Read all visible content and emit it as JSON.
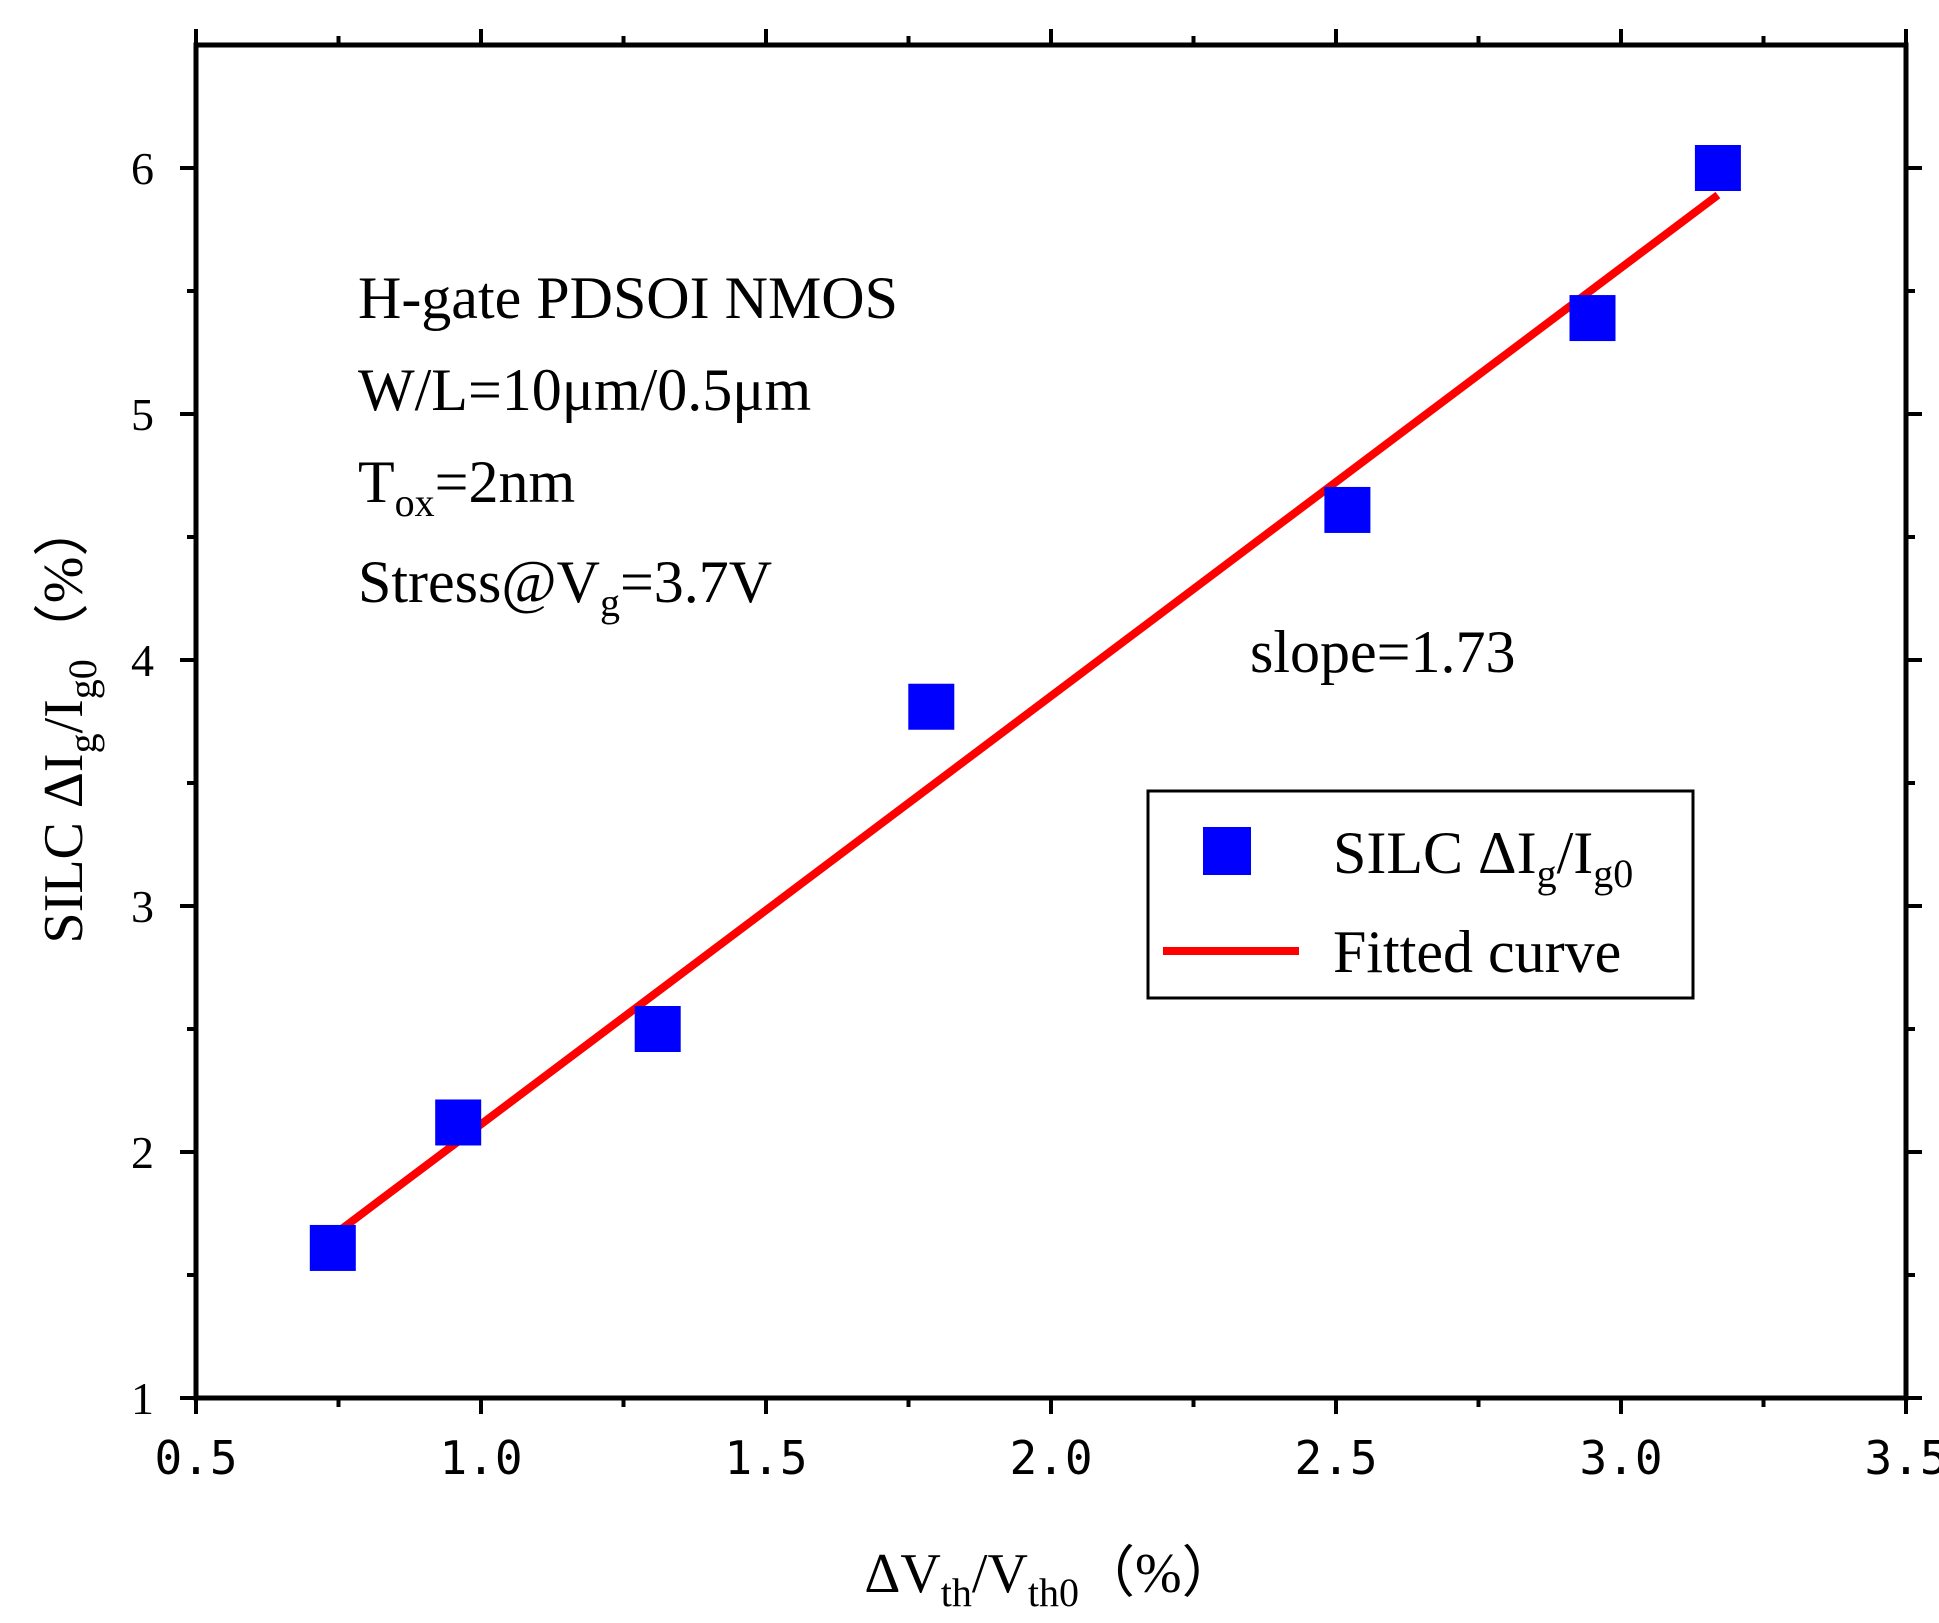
{
  "chart_data": {
    "type": "scatter",
    "xlabel": {
      "main": "ΔV",
      "sub1": "th",
      "mid": "/V",
      "sub2": "th0",
      "unit": "（%）"
    },
    "ylabel": {
      "main": "SILC ΔI",
      "sub1": "g",
      "mid": "/I",
      "sub2": "g0",
      "unit": "（%）"
    },
    "xlim": [
      0.5,
      3.5
    ],
    "ylim": [
      1,
      6.5
    ],
    "x_ticks": [
      0.5,
      1.0,
      1.5,
      2.0,
      2.5,
      3.0,
      3.5
    ],
    "x_tick_labels": [
      "0.5",
      "1.0",
      "1.5",
      "2.0",
      "2.5",
      "3.0",
      "3.5"
    ],
    "y_ticks": [
      1,
      2,
      3,
      4,
      5,
      6
    ],
    "y_tick_labels": [
      "1",
      "2",
      "3",
      "4",
      "5",
      "6"
    ],
    "grid": false,
    "series": [
      {
        "name": "SILC ΔIg/Ig0",
        "kind": "scatter",
        "marker": "square",
        "color": "#0000ff",
        "x": [
          0.74,
          0.96,
          1.31,
          1.79,
          2.52,
          2.95,
          3.17
        ],
        "y": [
          1.61,
          2.12,
          2.5,
          3.81,
          4.61,
          5.39,
          6.0
        ]
      },
      {
        "name": "Fitted curve",
        "kind": "line",
        "color": "#ff0000",
        "x": [
          0.74,
          3.17
        ],
        "y": [
          1.66,
          5.89
        ]
      }
    ],
    "annotations": {
      "line1": "H-gate PDSOI NMOS",
      "line2": "W/L=10μm/0.5μm",
      "line3_main": "T",
      "line3_sub": "ox",
      "line3_rest": "=2nm",
      "line4_main": "Stress@V",
      "line4_sub": "g",
      "line4_rest": "=3.7V",
      "slope": "slope=1.73"
    },
    "legend": {
      "position": "right-middle",
      "scatter_main": "SILC ΔI",
      "scatter_sub1": "g",
      "scatter_mid": "/I",
      "scatter_sub2": "g0",
      "line_label": "Fitted curve"
    }
  }
}
